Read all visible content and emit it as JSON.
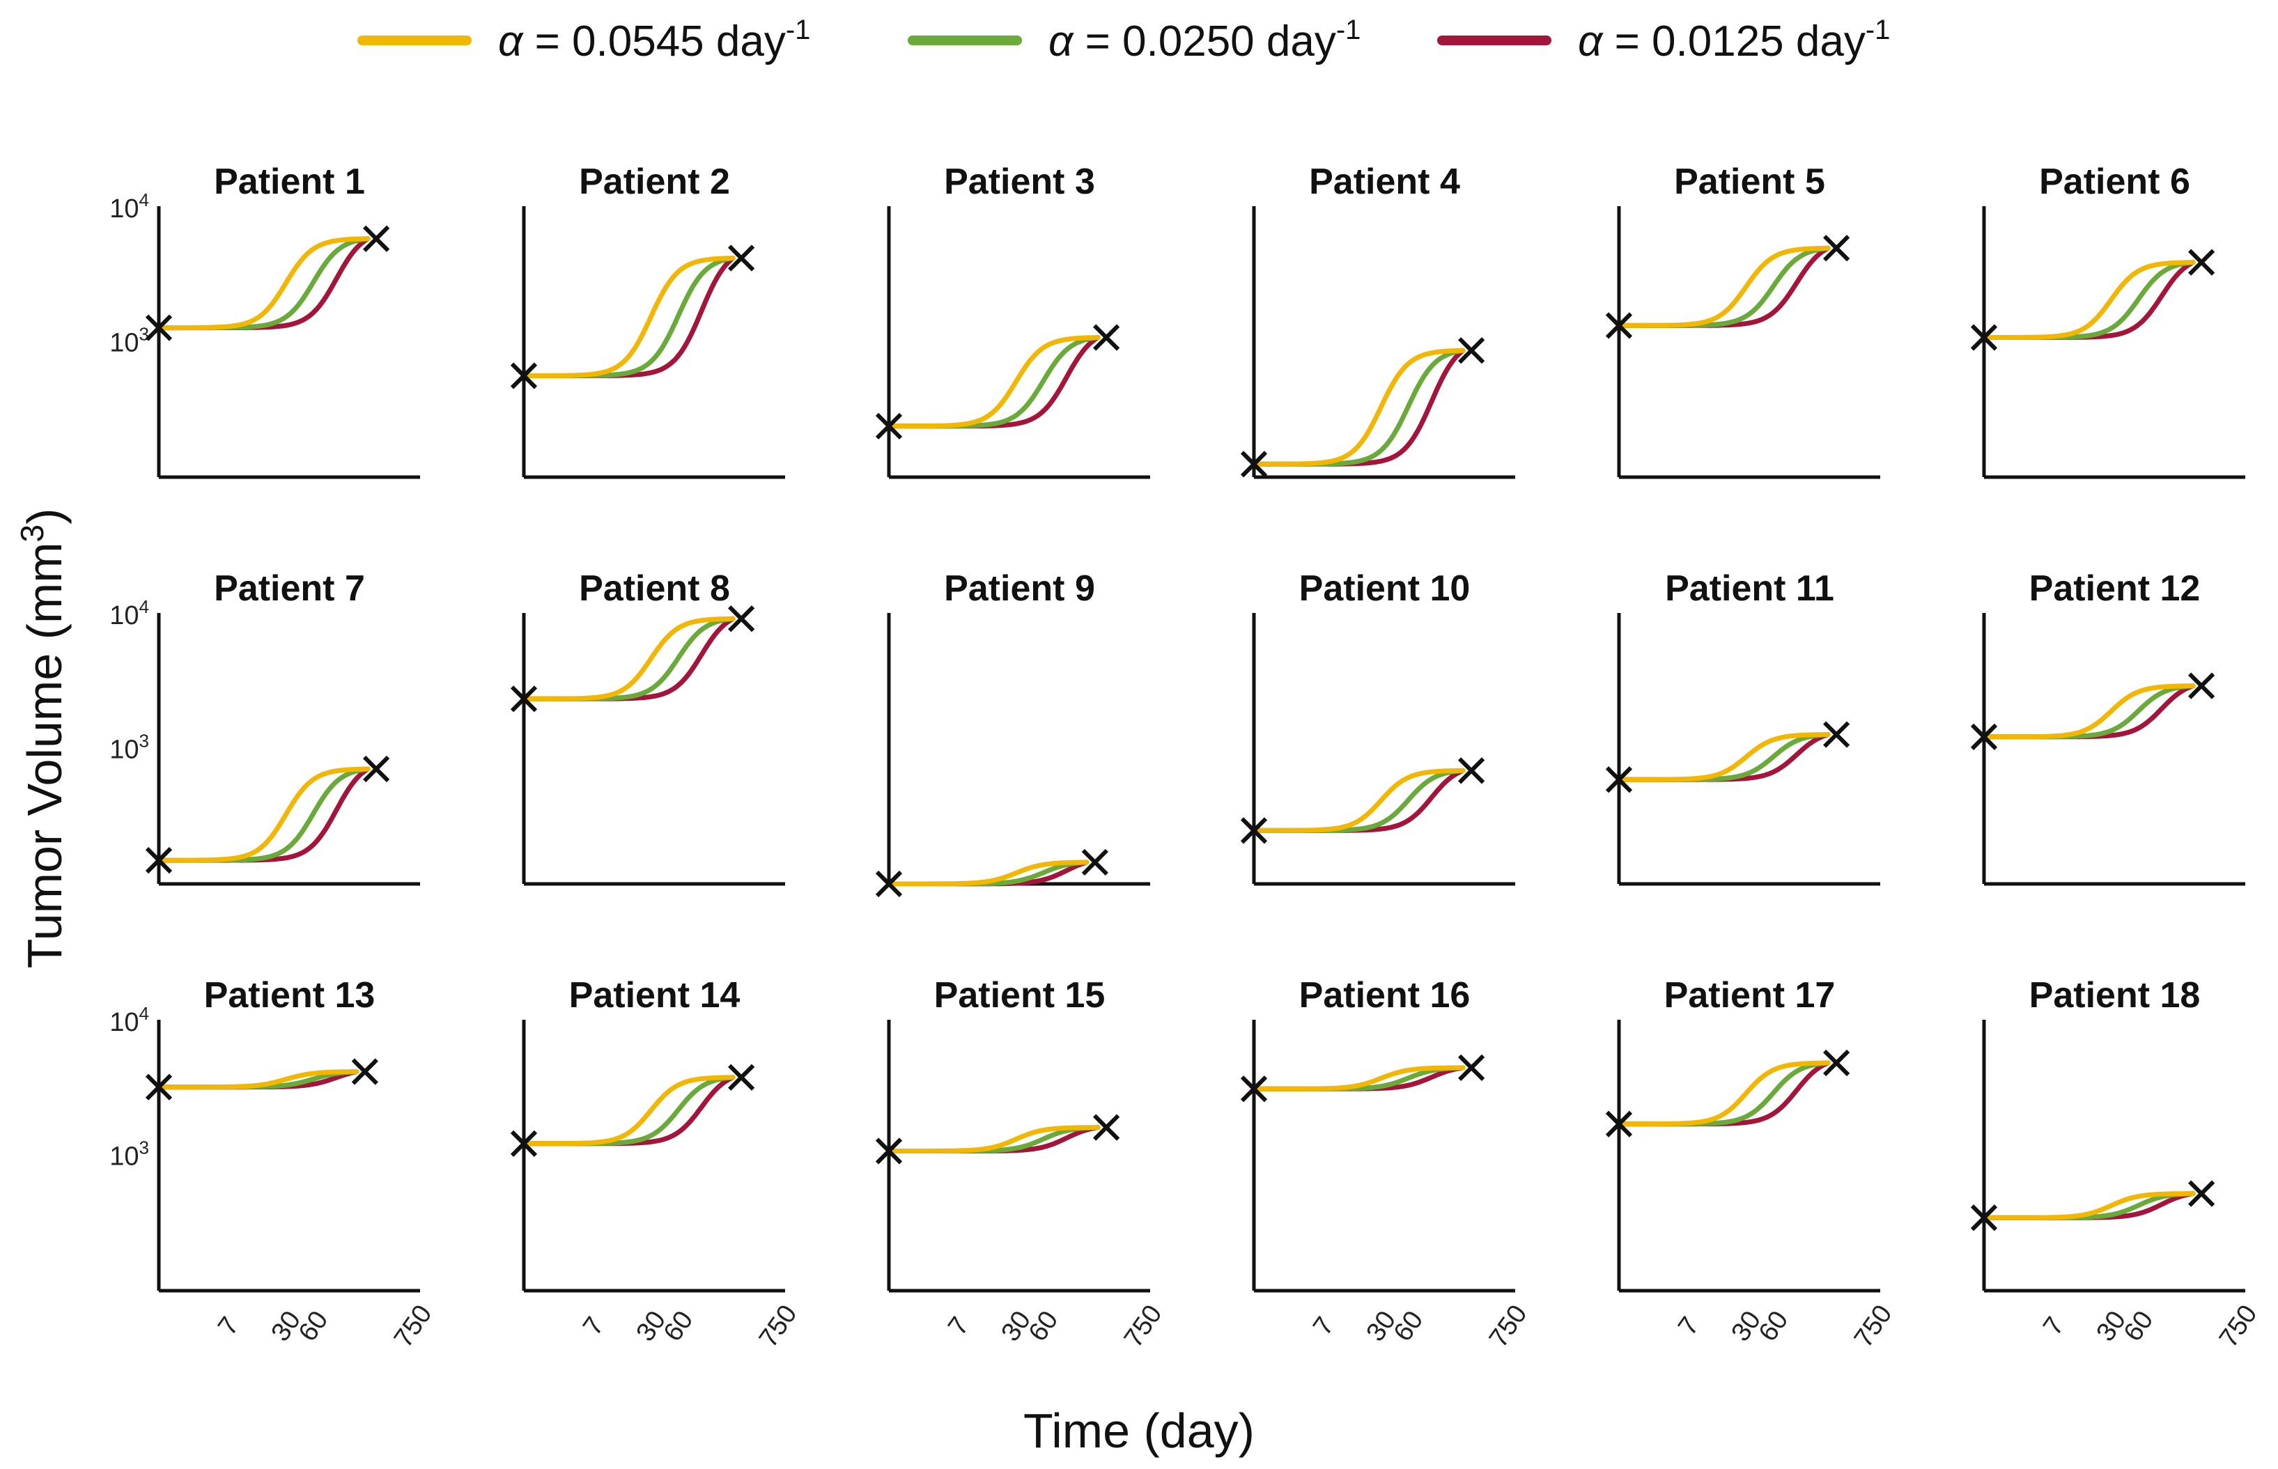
{
  "chart_data": {
    "type": "line",
    "legend": {
      "placement": "top",
      "entries": [
        {
          "label": "α = 0.0545 day-1",
          "symbol": "α",
          "value_text": " = 0.0545 day",
          "sup": "-1",
          "color": "#F2B705"
        },
        {
          "label": "α = 0.0250 day-1",
          "symbol": "α",
          "value_text": " = 0.0250 day",
          "sup": "-1",
          "color": "#6AAA3A"
        },
        {
          "label": "α = 0.0125 day-1",
          "symbol": "α",
          "value_text": " = 0.0125 day",
          "sup": "-1",
          "color": "#A3153B"
        }
      ]
    },
    "xlabel": "Time (day)",
    "ylabel": {
      "text": "Tumor Volume (mm",
      "sup": "3",
      "close": ")"
    },
    "x_scale": "log",
    "x_ticks": [
      "7",
      "30",
      "60",
      "750"
    ],
    "y_scale": "log",
    "y_ticks": [
      {
        "base": "10",
        "exp": "3",
        "value": 1000
      },
      {
        "base": "10",
        "exp": "4",
        "value": 10000
      }
    ],
    "ylim": [
      100,
      10000
    ],
    "series_names": [
      "α = 0.0545 day-1",
      "α = 0.0250 day-1",
      "α = 0.0125 day-1"
    ],
    "marker": "×",
    "panels": [
      {
        "title": "Patient 1",
        "v0": 1300,
        "v_end": 6000,
        "t_end": 200
      },
      {
        "title": "Patient 2",
        "v0": 570,
        "v_end": 4300,
        "t_end": 200
      },
      {
        "title": "Patient 3",
        "v0": 240,
        "v_end": 1100,
        "t_end": 200
      },
      {
        "title": "Patient 4",
        "v0": 125,
        "v_end": 880,
        "t_end": 200
      },
      {
        "title": "Patient 5",
        "v0": 1350,
        "v_end": 5100,
        "t_end": 200
      },
      {
        "title": "Patient 6",
        "v0": 1100,
        "v_end": 4000,
        "t_end": 200
      },
      {
        "title": "Patient 7",
        "v0": 150,
        "v_end": 720,
        "t_end": 200
      },
      {
        "title": "Patient 8",
        "v0": 2400,
        "v_end": 9500,
        "t_end": 200
      },
      {
        "title": "Patient 9",
        "v0": 100,
        "v_end": 145,
        "t_end": 150
      },
      {
        "title": "Patient 10",
        "v0": 250,
        "v_end": 700,
        "t_end": 200
      },
      {
        "title": "Patient 11",
        "v0": 600,
        "v_end": 1300,
        "t_end": 200
      },
      {
        "title": "Patient 12",
        "v0": 1250,
        "v_end": 3000,
        "t_end": 200
      },
      {
        "title": "Patient 13",
        "v0": 3300,
        "v_end": 4300,
        "t_end": 150
      },
      {
        "title": "Patient 14",
        "v0": 1250,
        "v_end": 3900,
        "t_end": 200
      },
      {
        "title": "Patient 15",
        "v0": 1100,
        "v_end": 1650,
        "t_end": 200
      },
      {
        "title": "Patient 16",
        "v0": 3200,
        "v_end": 4600,
        "t_end": 200
      },
      {
        "title": "Patient 17",
        "v0": 1750,
        "v_end": 5000,
        "t_end": 200
      },
      {
        "title": "Patient 18",
        "v0": 350,
        "v_end": 530,
        "t_end": 200
      }
    ],
    "grid": false
  }
}
